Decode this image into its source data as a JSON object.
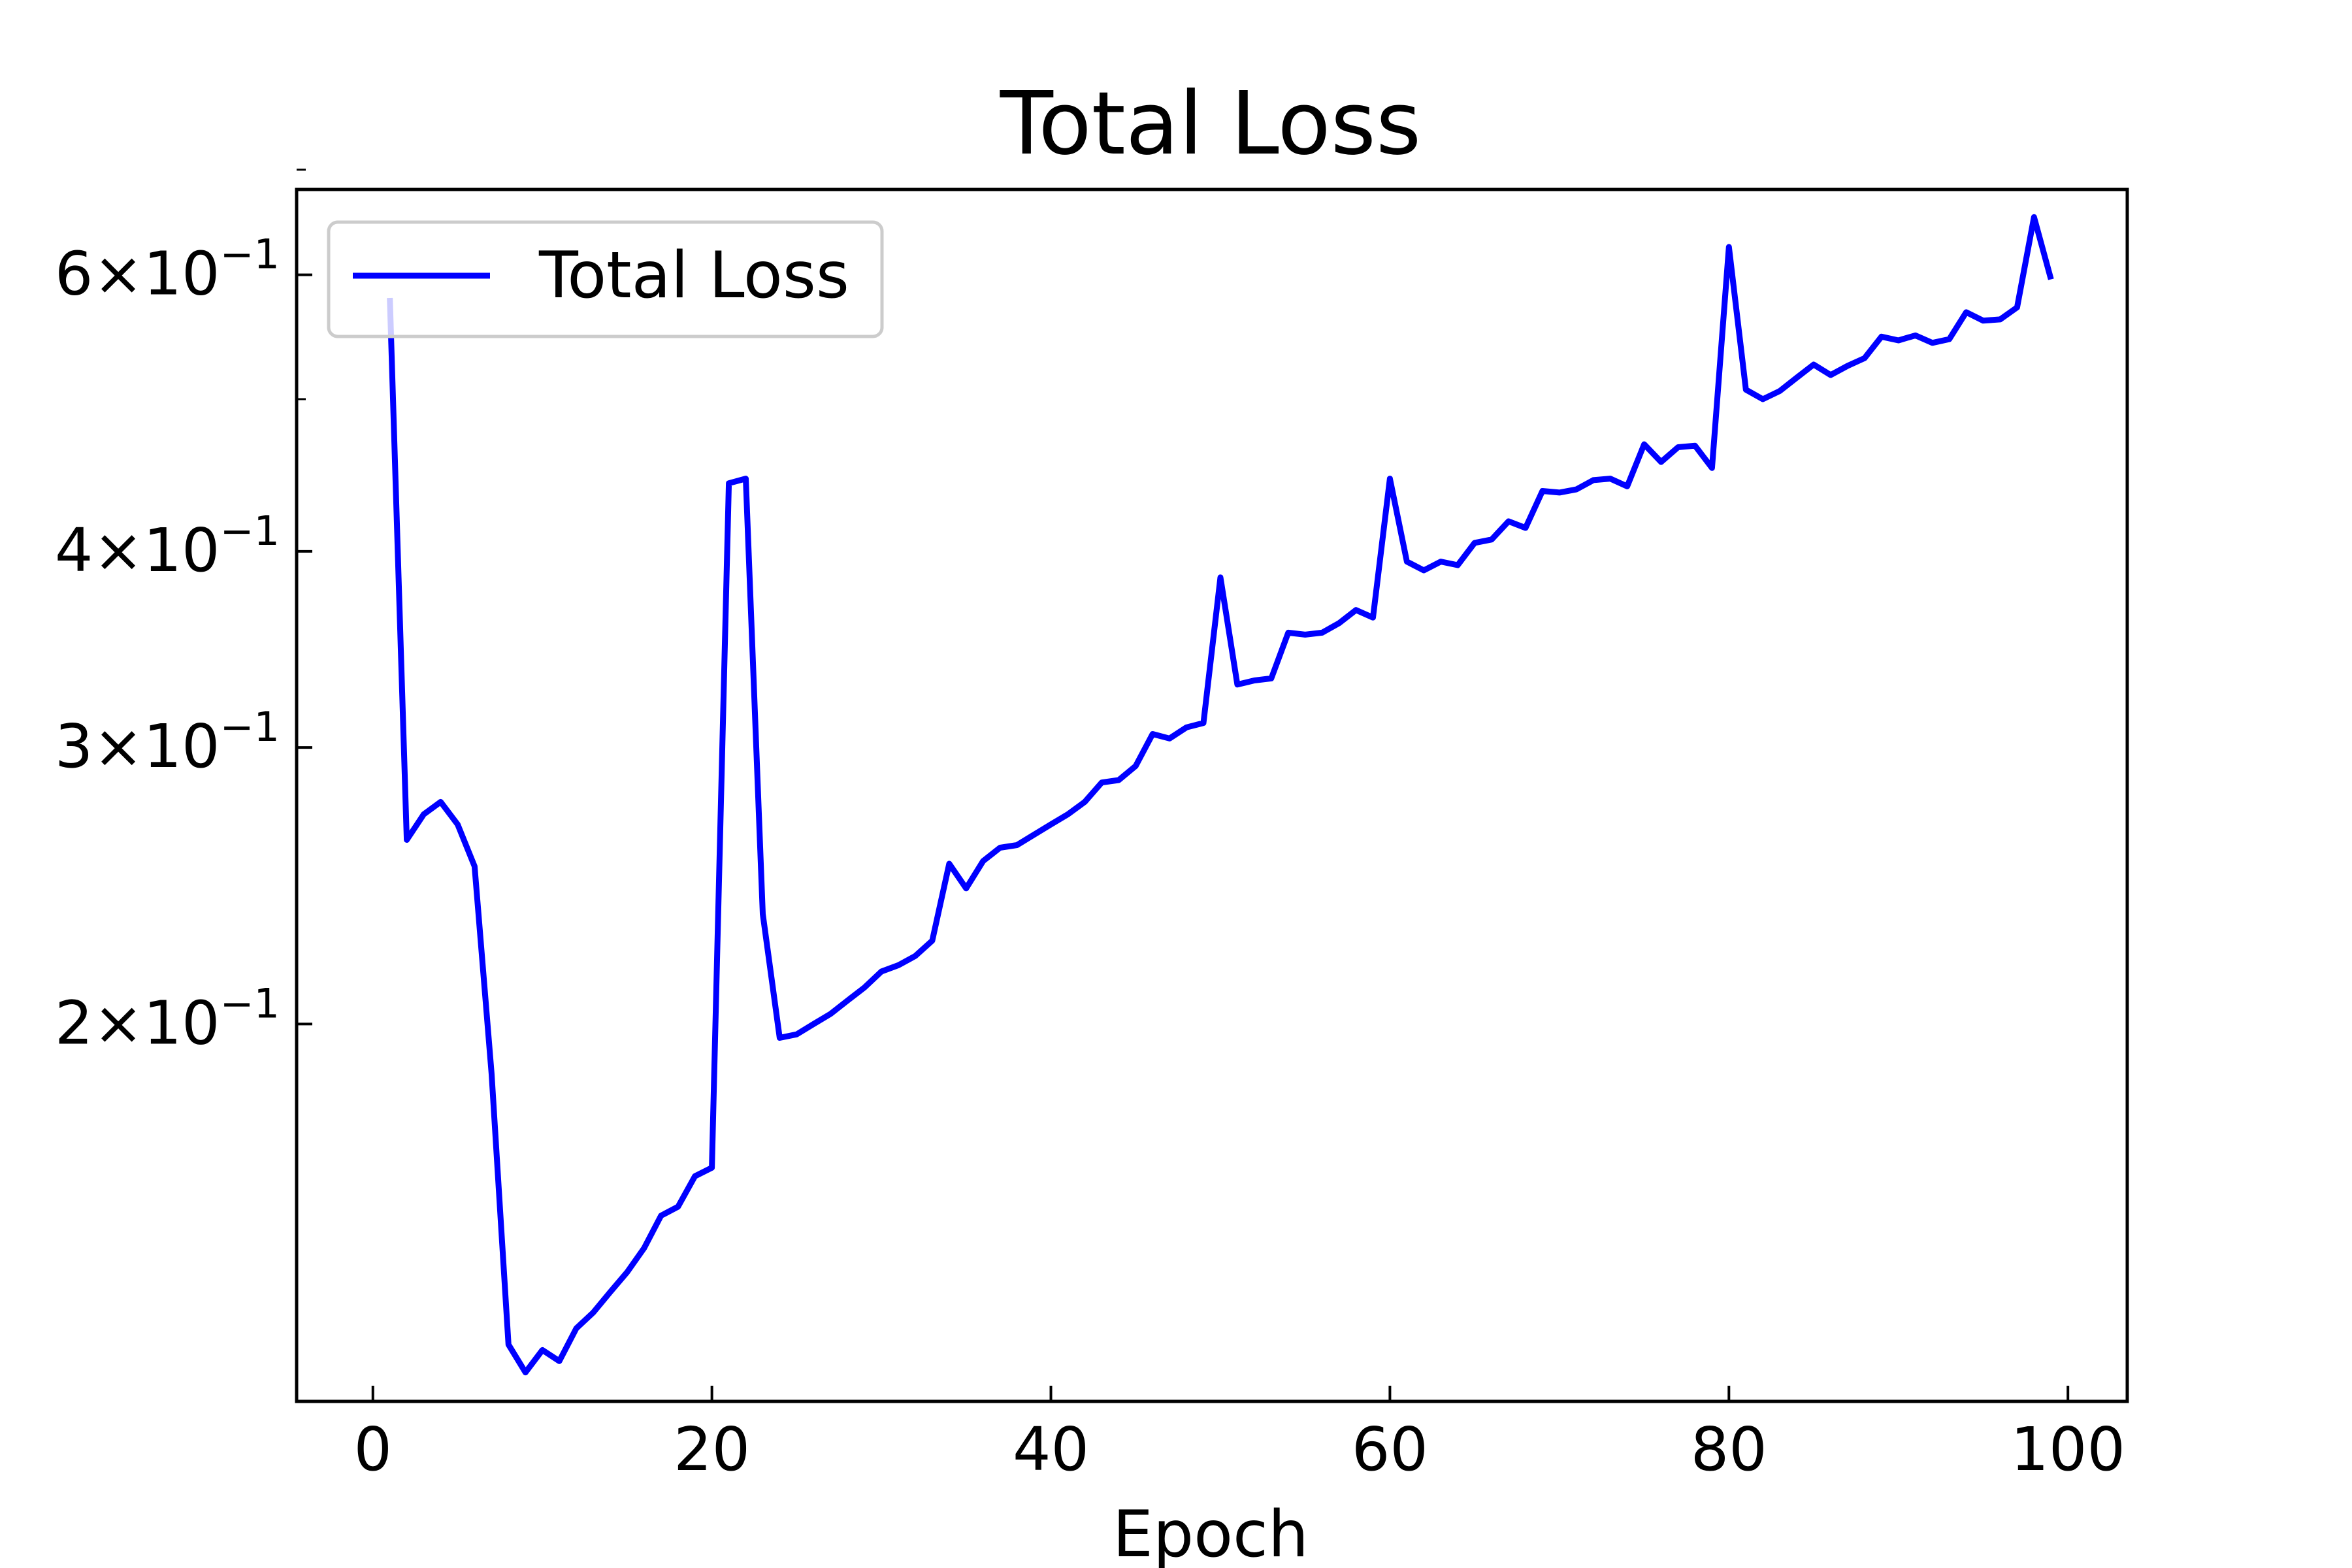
{
  "chart_data": {
    "type": "line",
    "title": "Total Loss",
    "xlabel": "Epoch",
    "ylabel": "",
    "yscale": "log",
    "xlim": [
      -4.5,
      103.5
    ],
    "ylim": [
      0.115,
      0.68
    ],
    "grid": false,
    "legend_position": "upper-left",
    "xticks": [
      0,
      20,
      40,
      60,
      80,
      100
    ],
    "xtick_labels": [
      "0",
      "20",
      "40",
      "60",
      "80",
      "100"
    ],
    "yticks": [
      0.2,
      0.3,
      0.4,
      0.6
    ],
    "ytick_labels": [
      {
        "mantissa": "2",
        "base": "10",
        "exponent": "−1"
      },
      {
        "mantissa": "3",
        "base": "10",
        "exponent": "−1"
      },
      {
        "mantissa": "4",
        "base": "10",
        "exponent": "−1"
      },
      {
        "mantissa": "6",
        "base": "10",
        "exponent": "−1"
      }
    ],
    "yminor_ticks": [
      0.5,
      0.7
    ],
    "series": [
      {
        "name": "Total Loss",
        "color": "#0000ff",
        "x": [
          1,
          2,
          3,
          4,
          5,
          6,
          7,
          8,
          9,
          10,
          11,
          12,
          13,
          14,
          15,
          16,
          17,
          18,
          19,
          20,
          21,
          22,
          23,
          24,
          25,
          26,
          27,
          28,
          29,
          30,
          31,
          32,
          33,
          34,
          35,
          36,
          37,
          38,
          39,
          40,
          41,
          42,
          43,
          44,
          45,
          46,
          47,
          48,
          49,
          50,
          51,
          52,
          53,
          54,
          55,
          56,
          57,
          58,
          59,
          60,
          61,
          62,
          63,
          64,
          65,
          66,
          67,
          68,
          69,
          70,
          71,
          72,
          73,
          74,
          75,
          76,
          77,
          78,
          79,
          80,
          81,
          82,
          83,
          84,
          85,
          86,
          87,
          88,
          89,
          90,
          91,
          92,
          93,
          94,
          95,
          96,
          97,
          98,
          99
        ],
        "y": [
          0.58,
          0.262,
          0.272,
          0.277,
          0.268,
          0.252,
          0.186,
          0.125,
          0.12,
          0.124,
          0.122,
          0.128,
          0.131,
          0.135,
          0.139,
          0.144,
          0.151,
          0.153,
          0.16,
          0.162,
          0.442,
          0.445,
          0.235,
          0.196,
          0.197,
          0.2,
          0.203,
          0.207,
          0.211,
          0.216,
          0.218,
          0.221,
          0.226,
          0.253,
          0.244,
          0.254,
          0.259,
          0.26,
          0.264,
          0.268,
          0.272,
          0.277,
          0.285,
          0.286,
          0.292,
          0.306,
          0.304,
          0.309,
          0.311,
          0.385,
          0.329,
          0.331,
          0.332,
          0.355,
          0.354,
          0.355,
          0.36,
          0.367,
          0.363,
          0.445,
          0.394,
          0.389,
          0.394,
          0.392,
          0.405,
          0.407,
          0.418,
          0.414,
          0.437,
          0.436,
          0.438,
          0.444,
          0.445,
          0.44,
          0.468,
          0.456,
          0.466,
          0.467,
          0.452,
          0.625,
          0.507,
          0.5,
          0.506,
          0.516,
          0.526,
          0.518,
          0.525,
          0.531,
          0.548,
          0.545,
          0.549,
          0.543,
          0.546,
          0.568,
          0.561,
          0.562,
          0.572,
          0.653,
          0.596
        ]
      }
    ]
  }
}
